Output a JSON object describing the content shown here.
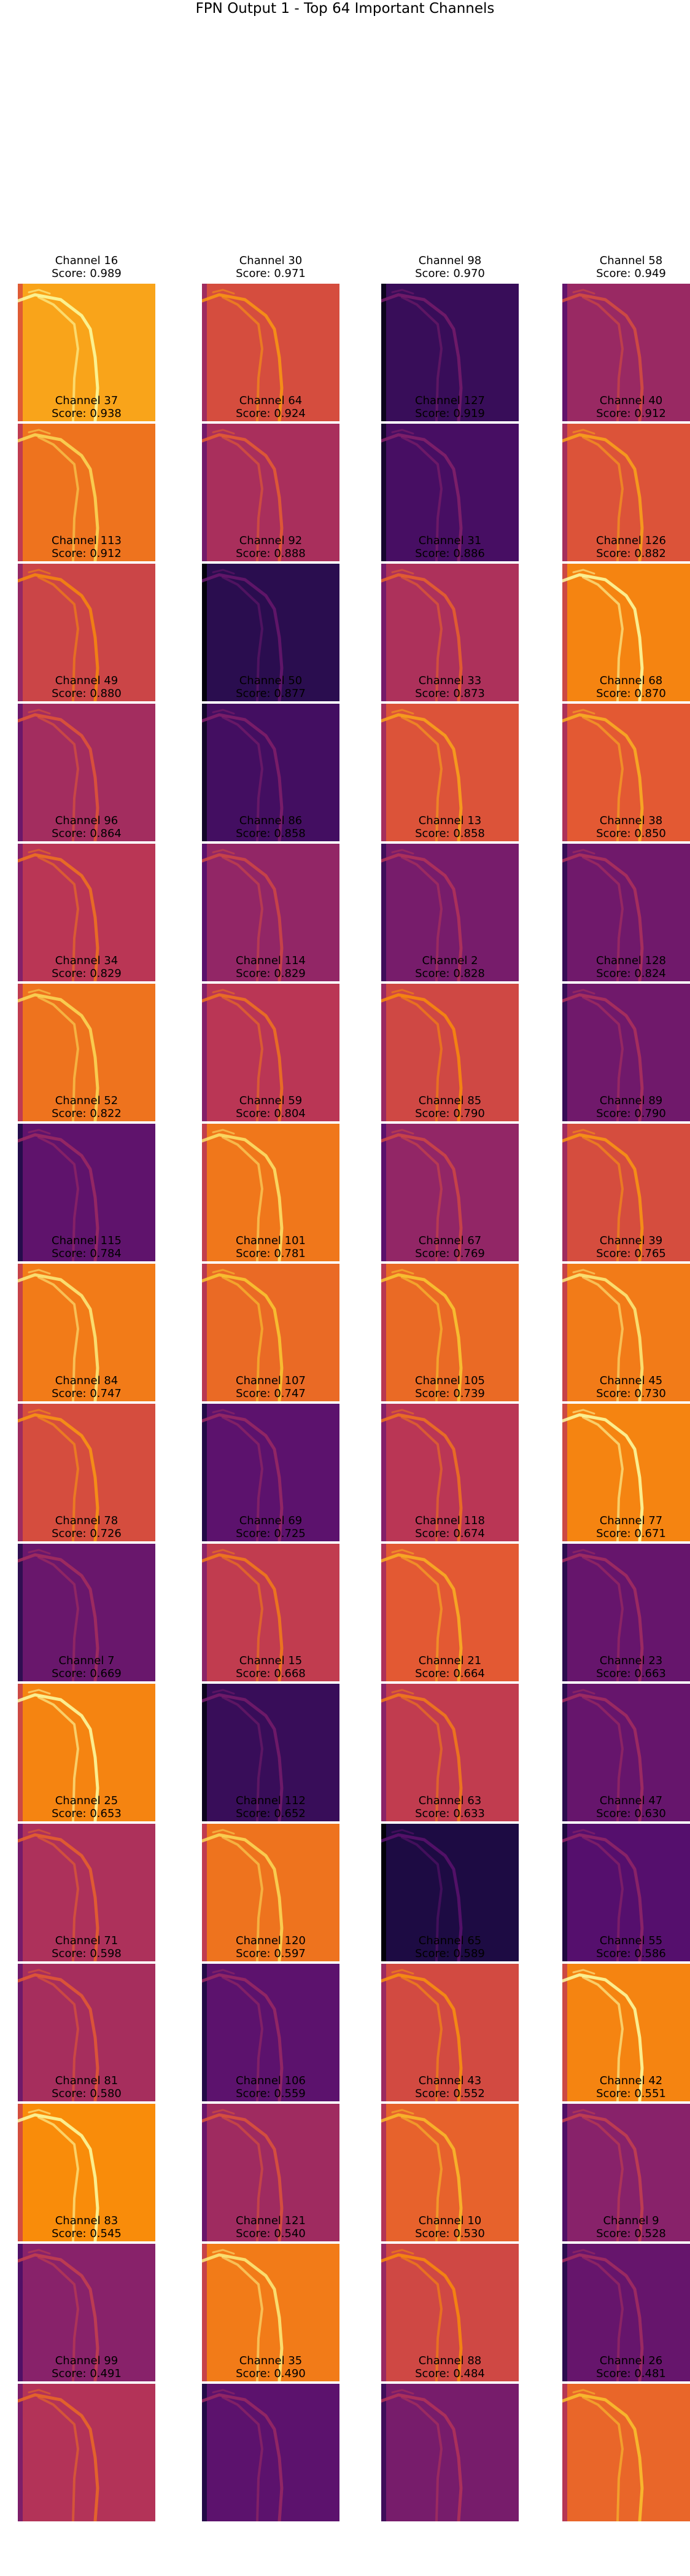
{
  "figure": {
    "title": "FPN Output 1 - Top 64 Important Channels",
    "channel_prefix": "Channel",
    "score_prefix": "Score:",
    "colormap": "inferno"
  },
  "channels": [
    {
      "channel": "Channel 16",
      "score": "Score: 0.989",
      "value": 0.989,
      "tone": 0.88
    },
    {
      "channel": "Channel 30",
      "score": "Score: 0.971",
      "value": 0.971,
      "tone": 0.68
    },
    {
      "channel": "Channel 98",
      "score": "Score: 0.970",
      "value": 0.97,
      "tone": 0.22
    },
    {
      "channel": "Channel 58",
      "score": "Score: 0.949",
      "value": 0.949,
      "tone": 0.5
    },
    {
      "channel": "Channel 37",
      "score": "Score: 0.938",
      "value": 0.938,
      "tone": 0.78
    },
    {
      "channel": "Channel 64",
      "score": "Score: 0.924",
      "value": 0.924,
      "tone": 0.55
    },
    {
      "channel": "Channel 127",
      "score": "Score: 0.919",
      "value": 0.919,
      "tone": 0.26
    },
    {
      "channel": "Channel 40",
      "score": "Score: 0.912",
      "value": 0.912,
      "tone": 0.7
    },
    {
      "channel": "Channel 113",
      "score": "Score: 0.912",
      "value": 0.912,
      "tone": 0.65
    },
    {
      "channel": "Channel 92",
      "score": "Score: 0.888",
      "value": 0.888,
      "tone": 0.18
    },
    {
      "channel": "Channel 31",
      "score": "Score: 0.886",
      "value": 0.886,
      "tone": 0.56
    },
    {
      "channel": "Channel 126",
      "score": "Score: 0.882",
      "value": 0.882,
      "tone": 0.82
    },
    {
      "channel": "Channel 49",
      "score": "Score: 0.880",
      "value": 0.88,
      "tone": 0.53
    },
    {
      "channel": "Channel 50",
      "score": "Score: 0.877",
      "value": 0.877,
      "tone": 0.25
    },
    {
      "channel": "Channel 33",
      "score": "Score: 0.873",
      "value": 0.873,
      "tone": 0.7
    },
    {
      "channel": "Channel 68",
      "score": "Score: 0.870",
      "value": 0.87,
      "tone": 0.72
    },
    {
      "channel": "Channel 96",
      "score": "Score: 0.864",
      "value": 0.864,
      "tone": 0.6
    },
    {
      "channel": "Channel 86",
      "score": "Score: 0.858",
      "value": 0.858,
      "tone": 0.48
    },
    {
      "channel": "Channel 13",
      "score": "Score: 0.858",
      "value": 0.858,
      "tone": 0.4
    },
    {
      "channel": "Channel 38",
      "score": "Score: 0.850",
      "value": 0.85,
      "tone": 0.38
    },
    {
      "channel": "Channel 34",
      "score": "Score: 0.829",
      "value": 0.829,
      "tone": 0.78
    },
    {
      "channel": "Channel 114",
      "score": "Score: 0.829",
      "value": 0.829,
      "tone": 0.6
    },
    {
      "channel": "Channel 2",
      "score": "Score: 0.828",
      "value": 0.828,
      "tone": 0.66
    },
    {
      "channel": "Channel 128",
      "score": "Score: 0.824",
      "value": 0.824,
      "tone": 0.38
    },
    {
      "channel": "Channel 52",
      "score": "Score: 0.822",
      "value": 0.822,
      "tone": 0.33
    },
    {
      "channel": "Channel 59",
      "score": "Score: 0.804",
      "value": 0.804,
      "tone": 0.79
    },
    {
      "channel": "Channel 85",
      "score": "Score: 0.790",
      "value": 0.79,
      "tone": 0.48
    },
    {
      "channel": "Channel 89",
      "score": "Score: 0.790",
      "value": 0.79,
      "tone": 0.68
    },
    {
      "channel": "Channel 115",
      "score": "Score: 0.784",
      "value": 0.784,
      "tone": 0.8
    },
    {
      "channel": "Channel 101",
      "score": "Score: 0.781",
      "value": 0.781,
      "tone": 0.76
    },
    {
      "channel": "Channel 67",
      "score": "Score: 0.769",
      "value": 0.769,
      "tone": 0.76
    },
    {
      "channel": "Channel 39",
      "score": "Score: 0.765",
      "value": 0.765,
      "tone": 0.8
    },
    {
      "channel": "Channel 84",
      "score": "Score: 0.747",
      "value": 0.747,
      "tone": 0.68
    },
    {
      "channel": "Channel 107",
      "score": "Score: 0.747",
      "value": 0.747,
      "tone": 0.32
    },
    {
      "channel": "Channel 105",
      "score": "Score: 0.739",
      "value": 0.739,
      "tone": 0.6
    },
    {
      "channel": "Channel 45",
      "score": "Score: 0.730",
      "value": 0.73,
      "tone": 0.82
    },
    {
      "channel": "Channel 78",
      "score": "Score: 0.726",
      "value": 0.726,
      "tone": 0.36
    },
    {
      "channel": "Channel 69",
      "score": "Score: 0.725",
      "value": 0.725,
      "tone": 0.62
    },
    {
      "channel": "Channel 118",
      "score": "Score: 0.674",
      "value": 0.674,
      "tone": 0.72
    },
    {
      "channel": "Channel 77",
      "score": "Score: 0.671",
      "value": 0.671,
      "tone": 0.35
    },
    {
      "channel": "Channel 7",
      "score": "Score: 0.669",
      "value": 0.669,
      "tone": 0.82
    },
    {
      "channel": "Channel 15",
      "score": "Score: 0.668",
      "value": 0.668,
      "tone": 0.22
    },
    {
      "channel": "Channel 21",
      "score": "Score: 0.664",
      "value": 0.664,
      "tone": 0.62
    },
    {
      "channel": "Channel 23",
      "score": "Score: 0.663",
      "value": 0.663,
      "tone": 0.35
    },
    {
      "channel": "Channel 25",
      "score": "Score: 0.653",
      "value": 0.653,
      "tone": 0.56
    },
    {
      "channel": "Channel 112",
      "score": "Score: 0.652",
      "value": 0.652,
      "tone": 0.78
    },
    {
      "channel": "Channel 63",
      "score": "Score: 0.633",
      "value": 0.633,
      "tone": 0.14
    },
    {
      "channel": "Channel 47",
      "score": "Score: 0.630",
      "value": 0.63,
      "tone": 0.3
    },
    {
      "channel": "Channel 71",
      "score": "Score: 0.598",
      "value": 0.598,
      "tone": 0.54
    },
    {
      "channel": "Channel 120",
      "score": "Score: 0.597",
      "value": 0.597,
      "tone": 0.32
    },
    {
      "channel": "Channel 65",
      "score": "Score: 0.589",
      "value": 0.589,
      "tone": 0.67
    },
    {
      "channel": "Channel 55",
      "score": "Score: 0.586",
      "value": 0.586,
      "tone": 0.82
    },
    {
      "channel": "Channel 81",
      "score": "Score: 0.580",
      "value": 0.58,
      "tone": 0.84
    },
    {
      "channel": "Channel 106",
      "score": "Score: 0.559",
      "value": 0.559,
      "tone": 0.52
    },
    {
      "channel": "Channel 43",
      "score": "Score: 0.552",
      "value": 0.552,
      "tone": 0.74
    },
    {
      "channel": "Channel 42",
      "score": "Score: 0.551",
      "value": 0.551,
      "tone": 0.45
    },
    {
      "channel": "Channel 83",
      "score": "Score: 0.545",
      "value": 0.545,
      "tone": 0.45
    },
    {
      "channel": "Channel 121",
      "score": "Score: 0.540",
      "value": 0.54,
      "tone": 0.8
    },
    {
      "channel": "Channel 10",
      "score": "Score: 0.530",
      "value": 0.53,
      "tone": 0.66
    },
    {
      "channel": "Channel 9",
      "score": "Score: 0.528",
      "value": 0.528,
      "tone": 0.35
    },
    {
      "channel": "Channel 99",
      "score": "Score: 0.491",
      "value": 0.491,
      "tone": 0.58
    },
    {
      "channel": "Channel 35",
      "score": "Score: 0.490",
      "value": 0.49,
      "tone": 0.32
    },
    {
      "channel": "Channel 88",
      "score": "Score: 0.484",
      "value": 0.484,
      "tone": 0.4
    },
    {
      "channel": "Channel 26",
      "score": "Score: 0.481",
      "value": 0.481,
      "tone": 0.75
    }
  ]
}
